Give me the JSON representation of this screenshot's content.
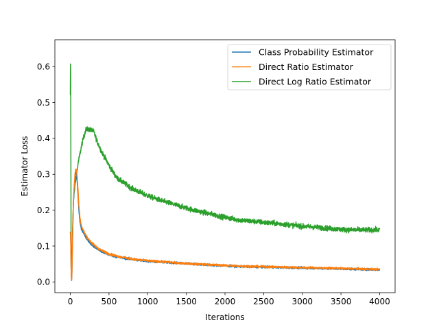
{
  "chart_data": {
    "type": "line",
    "title": "",
    "xlabel": "Iterations",
    "ylabel": "Estimator Loss",
    "xlim": [
      -200,
      4200
    ],
    "ylim": [
      -0.03,
      0.675
    ],
    "xticks": [
      0,
      500,
      1000,
      1500,
      2000,
      2500,
      3000,
      3500,
      4000
    ],
    "yticks": [
      0.0,
      0.1,
      0.2,
      0.3,
      0.4,
      0.5,
      0.6
    ],
    "ytick_labels": [
      "0.0",
      "0.1",
      "0.2",
      "0.3",
      "0.4",
      "0.5",
      "0.6"
    ],
    "xtick_labels": [
      "0",
      "500",
      "1000",
      "1500",
      "2000",
      "2500",
      "3000",
      "3500",
      "4000"
    ],
    "grid": false,
    "legend_position": "top-right",
    "series": [
      {
        "name": "Class Probability Estimator",
        "color": "#1f77b4",
        "noise": 0.004,
        "x": [
          0,
          5,
          10,
          15,
          20,
          30,
          40,
          50,
          60,
          70,
          80,
          90,
          100,
          110,
          120,
          130,
          150,
          175,
          200,
          250,
          300,
          350,
          400,
          450,
          500,
          600,
          700,
          800,
          900,
          1000,
          1200,
          1400,
          1600,
          1800,
          2000,
          2200,
          2400,
          2600,
          2800,
          3000,
          3200,
          3400,
          3600,
          3800,
          4000
        ],
        "values": [
          0.14,
          0.12,
          0.04,
          0.0,
          0.02,
          0.13,
          0.22,
          0.26,
          0.29,
          0.305,
          0.3,
          0.275,
          0.24,
          0.2,
          0.175,
          0.16,
          0.145,
          0.135,
          0.125,
          0.11,
          0.1,
          0.092,
          0.085,
          0.08,
          0.076,
          0.07,
          0.066,
          0.063,
          0.06,
          0.058,
          0.055,
          0.052,
          0.05,
          0.047,
          0.045,
          0.043,
          0.042,
          0.041,
          0.04,
          0.039,
          0.038,
          0.037,
          0.036,
          0.035,
          0.034
        ]
      },
      {
        "name": "Direct Ratio Estimator",
        "color": "#ff7f0e",
        "noise": 0.004,
        "x": [
          0,
          5,
          10,
          15,
          20,
          30,
          40,
          50,
          60,
          70,
          80,
          90,
          100,
          110,
          120,
          130,
          150,
          175,
          200,
          250,
          300,
          350,
          400,
          450,
          500,
          600,
          700,
          800,
          900,
          1000,
          1200,
          1400,
          1600,
          1800,
          2000,
          2200,
          2400,
          2600,
          2800,
          3000,
          3200,
          3400,
          3600,
          3800,
          4000
        ],
        "values": [
          0.14,
          0.12,
          0.04,
          0.0,
          0.02,
          0.13,
          0.23,
          0.27,
          0.3,
          0.315,
          0.31,
          0.29,
          0.255,
          0.215,
          0.19,
          0.17,
          0.152,
          0.14,
          0.13,
          0.115,
          0.104,
          0.095,
          0.088,
          0.083,
          0.078,
          0.072,
          0.068,
          0.064,
          0.061,
          0.059,
          0.056,
          0.053,
          0.05,
          0.048,
          0.046,
          0.044,
          0.043,
          0.042,
          0.041,
          0.04,
          0.039,
          0.038,
          0.037,
          0.036,
          0.035
        ]
      },
      {
        "name": "Direct Log Ratio Estimator",
        "color": "#2ca02c",
        "noise": 0.007,
        "x": [
          0,
          3,
          6,
          10,
          15,
          20,
          30,
          40,
          50,
          60,
          80,
          100,
          150,
          200,
          250,
          300,
          350,
          400,
          450,
          500,
          600,
          700,
          800,
          900,
          1000,
          1200,
          1400,
          1600,
          1800,
          2000,
          2200,
          2400,
          2600,
          2800,
          3000,
          3200,
          3400,
          3600,
          3800,
          4000
        ],
        "values": [
          0.52,
          0.65,
          0.45,
          0.05,
          0.003,
          0.05,
          0.16,
          0.22,
          0.25,
          0.27,
          0.3,
          0.33,
          0.385,
          0.425,
          0.425,
          0.42,
          0.39,
          0.365,
          0.345,
          0.325,
          0.29,
          0.275,
          0.26,
          0.25,
          0.24,
          0.225,
          0.212,
          0.2,
          0.19,
          0.18,
          0.172,
          0.168,
          0.164,
          0.16,
          0.155,
          0.152,
          0.148,
          0.145,
          0.145,
          0.145
        ]
      }
    ]
  }
}
